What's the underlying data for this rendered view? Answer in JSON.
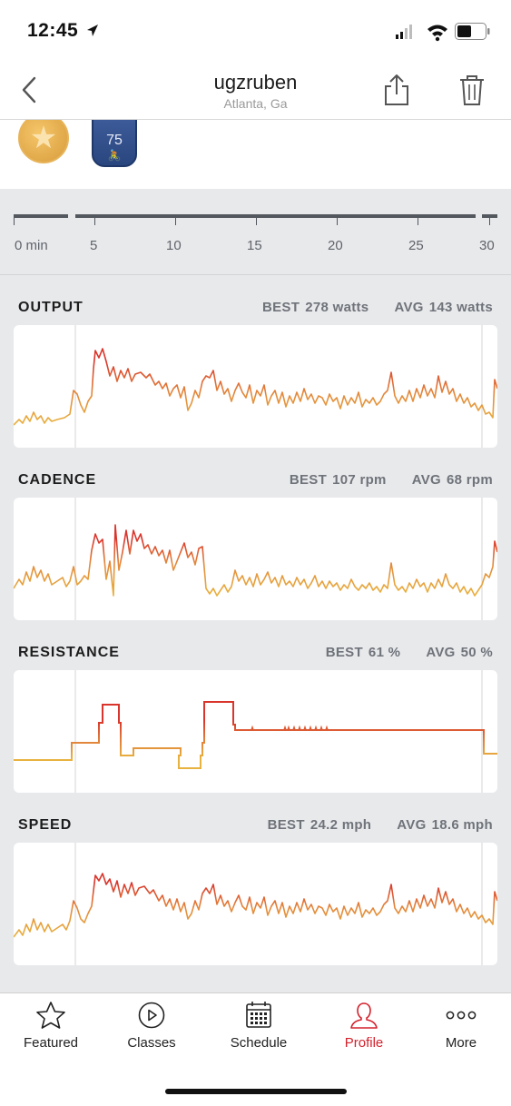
{
  "status_bar": {
    "time": "12:45",
    "icons": [
      "location-arrow-icon",
      "signal-icon",
      "wifi-icon",
      "battery-icon"
    ]
  },
  "header": {
    "title": "ugzruben",
    "subtitle": "Atlanta, Ga",
    "icons": [
      "back-chevron-icon",
      "share-icon",
      "trash-icon"
    ]
  },
  "badges": [
    {
      "icon": "gold-star-badge-icon"
    },
    {
      "icon": "blue-ride-count-badge-icon",
      "value": "75"
    }
  ],
  "timeline": {
    "labels": [
      "0 min",
      "5",
      "10",
      "15",
      "20",
      "25",
      "30"
    ]
  },
  "metrics": [
    {
      "name": "OUTPUT",
      "best_label": "BEST",
      "best_value": "278 watts",
      "avg_label": "AVG",
      "avg_value": "143 watts"
    },
    {
      "name": "CADENCE",
      "best_label": "BEST",
      "best_value": "107 rpm",
      "avg_label": "AVG",
      "avg_value": "68 rpm"
    },
    {
      "name": "RESISTANCE",
      "best_label": "BEST",
      "best_value": "61 %",
      "avg_label": "AVG",
      "avg_value": "50 %"
    },
    {
      "name": "SPEED",
      "best_label": "BEST",
      "best_value": "24.2 mph",
      "avg_label": "AVG",
      "avg_value": "18.6 mph"
    }
  ],
  "tabs": [
    {
      "label": "Featured",
      "icon": "star-icon",
      "active": false
    },
    {
      "label": "Classes",
      "icon": "play-circle-icon",
      "active": false
    },
    {
      "label": "Schedule",
      "icon": "calendar-icon",
      "active": false
    },
    {
      "label": "Profile",
      "icon": "profile-icon",
      "active": true
    },
    {
      "label": "More",
      "icon": "more-dots-icon",
      "active": false
    }
  ],
  "colors": {
    "accent": "#d3222d",
    "line_low": "#e8b23f",
    "line_high": "#d9352c",
    "background_gray": "#e8e9eb"
  }
}
